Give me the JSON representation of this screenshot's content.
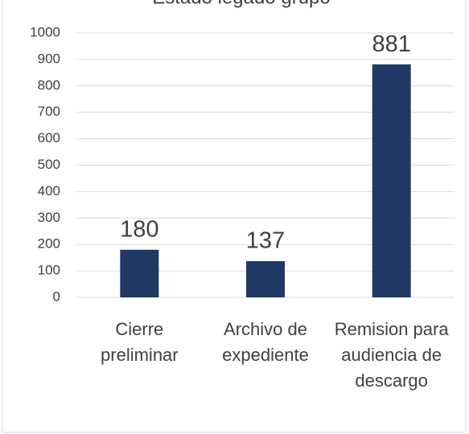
{
  "chart_data": {
    "type": "bar",
    "title": "Estado legado grupo",
    "categories": [
      "Cierre preliminar",
      "Archivo de expediente",
      "Remision para audiencia de descargo"
    ],
    "values": [
      180,
      137,
      881
    ],
    "color": "#203864",
    "ylim": [
      0,
      1000
    ],
    "yticks": [
      0,
      100,
      200,
      300,
      400,
      500,
      600,
      700,
      800,
      900,
      1000
    ],
    "grid": true
  }
}
